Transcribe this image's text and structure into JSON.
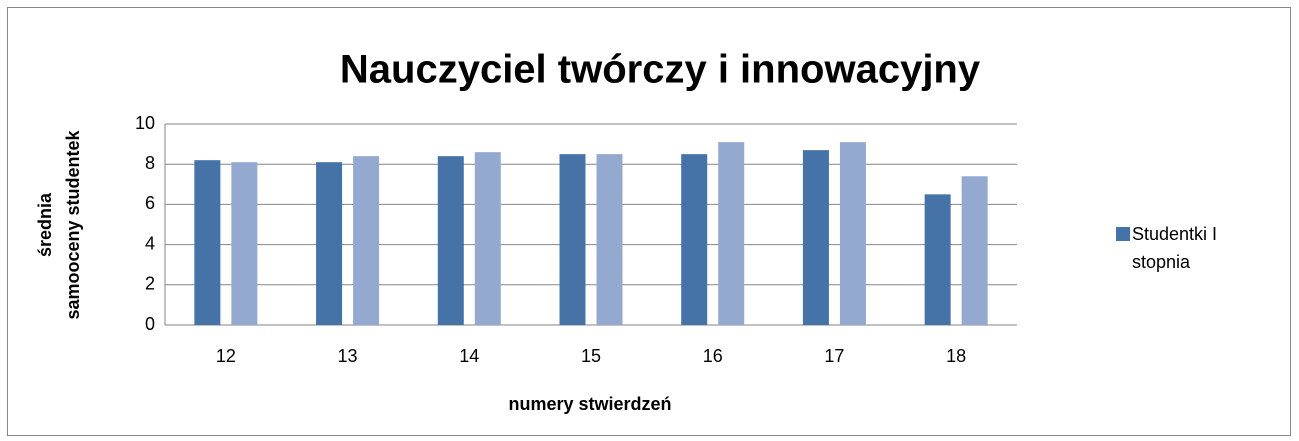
{
  "chart_data": {
    "type": "bar",
    "title": "Nauczyciel twórczy i innowacyjny",
    "xlabel": "numery stwierdzeń",
    "ylabel": [
      "średnia",
      "samooceny studentek"
    ],
    "categories": [
      "12",
      "13",
      "14",
      "15",
      "16",
      "17",
      "18"
    ],
    "series": [
      {
        "name": "Studentki I stopnia",
        "color": "#4572a7",
        "values": [
          8.2,
          8.1,
          8.4,
          8.5,
          8.5,
          8.7,
          6.5
        ]
      },
      {
        "color": "#93a9cf",
        "values": [
          8.1,
          8.4,
          8.6,
          8.5,
          9.1,
          9.1,
          7.4
        ]
      }
    ],
    "ylim": [
      0,
      10
    ],
    "yticks": [
      0,
      2,
      4,
      6,
      8,
      10
    ],
    "grid": true,
    "legend": "right"
  }
}
